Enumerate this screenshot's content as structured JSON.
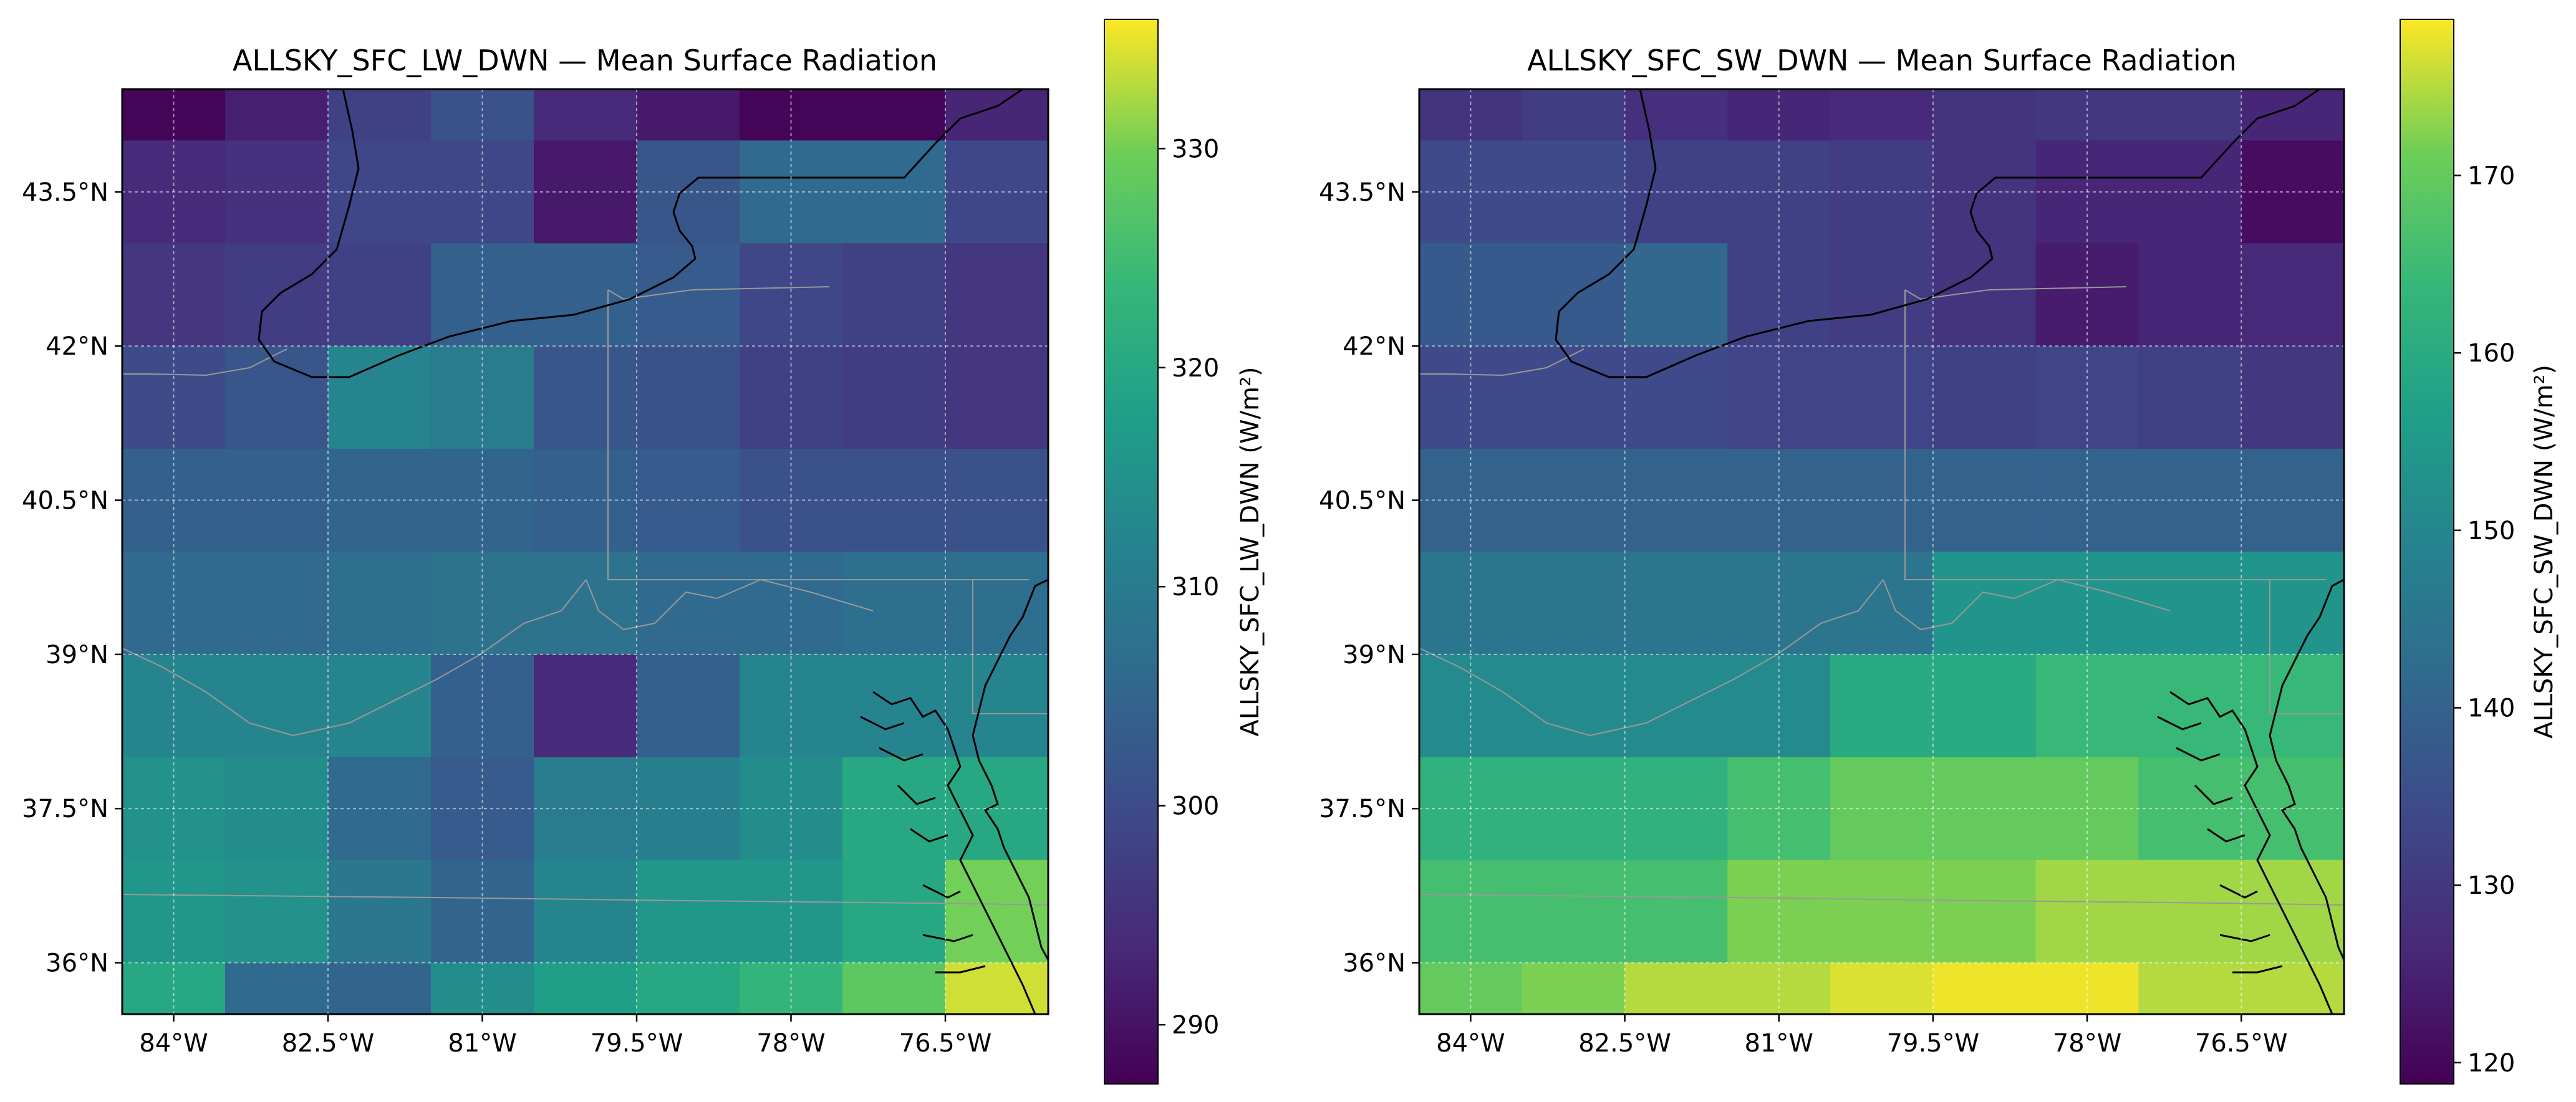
{
  "chart_data": [
    {
      "type": "heatmap",
      "title": "ALLSKY_SFC_LW_DWN — Mean Surface Radiation",
      "colorbar_label": "ALLSKY_SFC_LW_DWN (W/m²)",
      "colormap": "viridis",
      "vmin": 287.3,
      "vmax": 335.9,
      "colorbar_ticks": [
        290,
        300,
        310,
        320,
        330
      ],
      "x_ticks": [
        -84,
        -82.5,
        -81,
        -79.5,
        -78,
        -76.5
      ],
      "x_tick_labels": [
        "84°W",
        "82.5°W",
        "81°W",
        "79.5°W",
        "78°W",
        "76.5°W"
      ],
      "y_ticks": [
        36,
        37.5,
        39,
        40.5,
        42,
        43.5
      ],
      "y_tick_labels": [
        "36°N",
        "37.5°N",
        "39°N",
        "40.5°N",
        "42°N",
        "43.5°N"
      ],
      "xlim": [
        -84.5,
        -75.5
      ],
      "ylim": [
        35.5,
        44.5
      ],
      "grid": true,
      "lon_edges": [
        -84.5,
        -83.5,
        -82.5,
        -81.5,
        -80.5,
        -79.5,
        -78.5,
        -77.5,
        -76.5,
        -75.5
      ],
      "lat_edges_top_to_bottom": [
        44.5,
        44.0,
        43.0,
        42.0,
        41.0,
        40.0,
        39.0,
        38.0,
        37.0,
        36.0,
        35.5
      ],
      "values_rows_top_to_bottom": [
        [
          288,
          292,
          298,
          301,
          294,
          291,
          288,
          288,
          293
        ],
        [
          294,
          295,
          299,
          299,
          291,
          302,
          306,
          306,
          299
        ],
        [
          296,
          297,
          298,
          304,
          304,
          303,
          299,
          298,
          296
        ],
        [
          300,
          302,
          312,
          310,
          302,
          301,
          298,
          297,
          296
        ],
        [
          304,
          304,
          305,
          305,
          304,
          303,
          301,
          301,
          301
        ],
        [
          306,
          306,
          307,
          308,
          308,
          306,
          306,
          307,
          307
        ],
        [
          312,
          312,
          312,
          304,
          294,
          304,
          312,
          312,
          312
        ],
        [
          315,
          314,
          306,
          303,
          310,
          311,
          314,
          320,
          320
        ],
        [
          316,
          315,
          309,
          305,
          312,
          316,
          316,
          320,
          330
        ],
        [
          320,
          306,
          305,
          314,
          318,
          320,
          323,
          328,
          334
        ]
      ]
    },
    {
      "type": "heatmap",
      "title": "ALLSKY_SFC_SW_DWN — Mean Surface Radiation",
      "colorbar_label": "ALLSKY_SFC_SW_DWN (W/m²)",
      "colormap": "viridis",
      "vmin": 118.8,
      "vmax": 178.8,
      "colorbar_ticks": [
        120,
        130,
        140,
        150,
        160,
        170
      ],
      "x_ticks": [
        -84,
        -82.5,
        -81,
        -79.5,
        -78,
        -76.5
      ],
      "x_tick_labels": [
        "84°W",
        "82.5°W",
        "81°W",
        "79.5°W",
        "78°W",
        "76.5°W"
      ],
      "y_ticks": [
        36,
        37.5,
        39,
        40.5,
        42,
        43.5
      ],
      "y_tick_labels": [
        "36°N",
        "37.5°N",
        "39°N",
        "40.5°N",
        "42°N",
        "43.5°N"
      ],
      "xlim": [
        -84.5,
        -75.5
      ],
      "ylim": [
        35.5,
        44.5
      ],
      "grid": true,
      "lon_edges": [
        -84.5,
        -83.5,
        -82.5,
        -81.5,
        -80.5,
        -79.5,
        -78.5,
        -77.5,
        -76.5,
        -75.5
      ],
      "lat_edges_top_to_bottom": [
        44.5,
        44.0,
        43.0,
        42.0,
        41.0,
        40.0,
        39.0,
        38.0,
        37.0,
        36.0,
        35.5
      ],
      "values_rows_top_to_bottom": [
        [
          129,
          131,
          128,
          126,
          127,
          129,
          130,
          130,
          126
        ],
        [
          134,
          134,
          132,
          132,
          131,
          129,
          126,
          126,
          121
        ],
        [
          138,
          138,
          141,
          132,
          131,
          129,
          124,
          126,
          127
        ],
        [
          134,
          134,
          134,
          133,
          133,
          132,
          133,
          132,
          130
        ],
        [
          140,
          140,
          140,
          140,
          140,
          140,
          140,
          140,
          140
        ],
        [
          145,
          145,
          145,
          145,
          145,
          154,
          154,
          154,
          154
        ],
        [
          151,
          151,
          151,
          151,
          160,
          160,
          164,
          164,
          164
        ],
        [
          162,
          162,
          162,
          166,
          170,
          170,
          170,
          166,
          166
        ],
        [
          166,
          166,
          166,
          172,
          172,
          172,
          174,
          174,
          174
        ],
        [
          170,
          172,
          175,
          175,
          177,
          178,
          178,
          175,
          175
        ]
      ]
    }
  ]
}
